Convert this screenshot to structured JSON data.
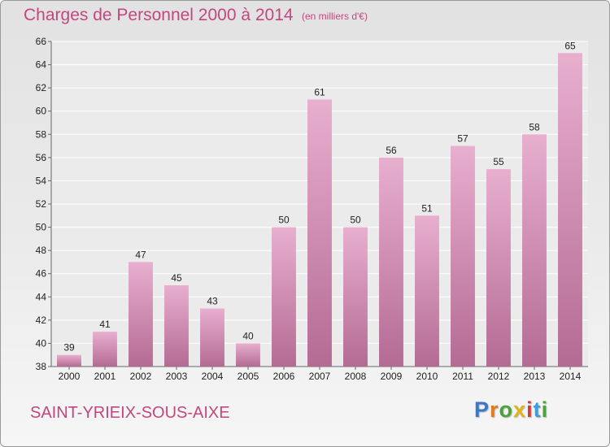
{
  "title": "Charges de Personnel 2000 à 2014",
  "subtitle": "(en milliers d'€)",
  "commune": "SAINT-YRIEIX-SOUS-AIXE",
  "logo": {
    "letters": [
      {
        "char": "P",
        "color": "#3a78c9"
      },
      {
        "char": "r",
        "color": "#e07b1f"
      },
      {
        "char": "o",
        "color": "#4aa23a"
      },
      {
        "char": "x",
        "color": "#e0b51a"
      },
      {
        "char": "i",
        "color": "#d63b3b"
      },
      {
        "char": "t",
        "color": "#3a9fd6"
      },
      {
        "char": "i",
        "color": "#4aa23a"
      }
    ]
  },
  "chart_data": {
    "type": "bar",
    "categories": [
      "2000",
      "2001",
      "2002",
      "2003",
      "2004",
      "2005",
      "2006",
      "2007",
      "2008",
      "2009",
      "2010",
      "2011",
      "2012",
      "2013",
      "2014"
    ],
    "values": [
      39,
      41,
      47,
      45,
      43,
      40,
      50,
      61,
      50,
      56,
      51,
      57,
      55,
      58,
      65
    ],
    "ylim": [
      38,
      66
    ],
    "yticks": [
      38,
      40,
      42,
      44,
      46,
      48,
      50,
      52,
      54,
      56,
      58,
      60,
      62,
      64,
      66
    ],
    "grid": true,
    "bar_color_top": "#e8afcf",
    "bar_color_bottom": "#b46b93"
  }
}
